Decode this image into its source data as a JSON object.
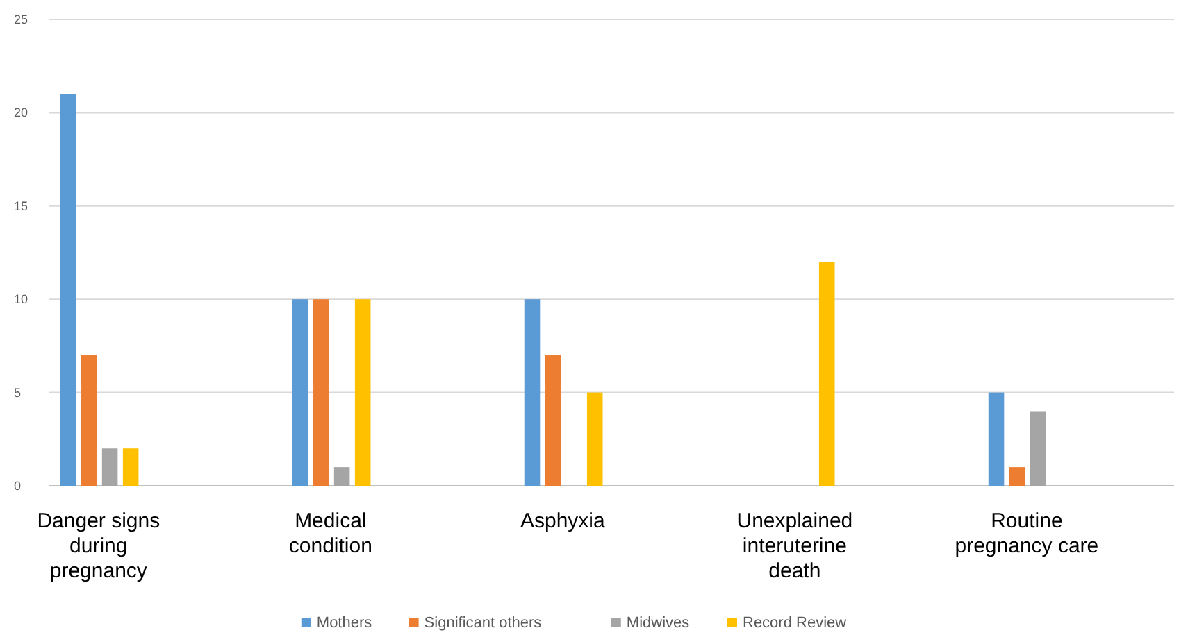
{
  "chart_data": {
    "type": "bar",
    "categories": [
      "Danger signs during pregnancy",
      "Medical condition",
      "Asphyxia",
      "Unexplained interuterine death",
      "Routine pregnancy care"
    ],
    "series": [
      {
        "name": "Mothers",
        "color": "#5b9bd5",
        "values": [
          21,
          10,
          10,
          0,
          5
        ]
      },
      {
        "name": "Significant others",
        "color": "#ed7d31",
        "values": [
          7,
          10,
          7,
          0,
          1
        ]
      },
      {
        "name": "Midwives",
        "color": "#a5a5a5",
        "values": [
          2,
          1,
          0,
          0,
          4
        ]
      },
      {
        "name": "Record Review",
        "color": "#ffc000",
        "values": [
          2,
          10,
          5,
          12,
          0
        ]
      }
    ],
    "ylim": [
      0,
      25
    ],
    "yticks": [
      0,
      5,
      10,
      15,
      20,
      25
    ],
    "grid": "y",
    "legend": "bottom"
  }
}
